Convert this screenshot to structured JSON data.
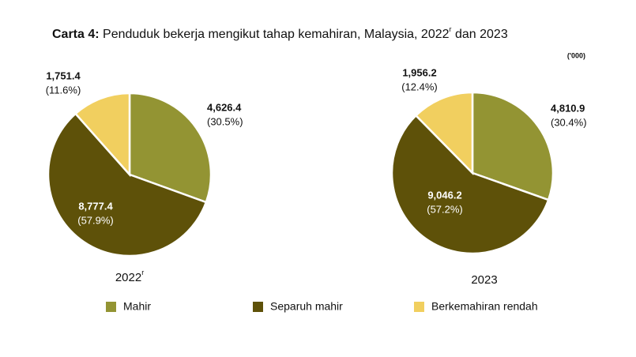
{
  "chart_data": {
    "type": "pie",
    "title": {
      "prefix": "Carta 4:",
      "text": "Penduduk bekerja mengikut tahap kemahiran, Malaysia, 2022",
      "note": "r",
      "rest": "dan 2023"
    },
    "unit": "('000)",
    "categories": [
      "Mahir",
      "Separuh mahir",
      "Berkemahiran rendah"
    ],
    "colors": [
      "#939433",
      "#5e5109",
      "#f1cf5f"
    ],
    "pies": [
      {
        "label": "2022",
        "label_note": "r",
        "values": [
          4626.4,
          8777.4,
          1751.4
        ],
        "value_labels": [
          "4,626.4",
          "8,777.4",
          "1,751.4"
        ],
        "percents": [
          30.5,
          57.9,
          11.6
        ],
        "percent_labels": [
          "(30.5%)",
          "(57.9%)",
          "(11.6%)"
        ]
      },
      {
        "label": "2023",
        "values": [
          4810.9,
          9046.2,
          1956.2
        ],
        "value_labels": [
          "4,810.9",
          "9,046.2",
          "1,956.2"
        ],
        "percents": [
          30.4,
          57.2,
          12.4
        ],
        "percent_labels": [
          "(30.4%)",
          "(57.2%)",
          "(12.4%)"
        ]
      }
    ]
  }
}
